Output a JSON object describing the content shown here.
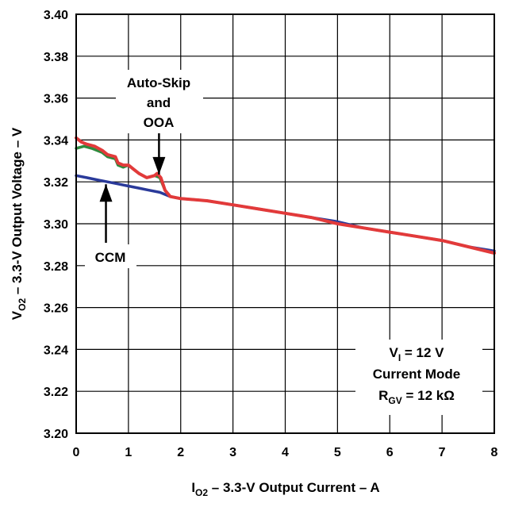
{
  "chart_data": {
    "type": "line",
    "title": "",
    "xlabel": {
      "main": "I",
      "sub": "O2",
      "rest": " – 3.3-V Output Current –  A"
    },
    "ylabel": {
      "main": "V",
      "sub": "O2",
      "rest": " – 3.3-V Output Voltage – V"
    },
    "xlim": [
      0,
      8
    ],
    "ylim": [
      3.2,
      3.4
    ],
    "x_ticks": [
      "0",
      "1",
      "2",
      "3",
      "4",
      "5",
      "6",
      "7",
      "8"
    ],
    "y_ticks": [
      "3.20",
      "3.22",
      "3.24",
      "3.26",
      "3.28",
      "3.30",
      "3.32",
      "3.34",
      "3.36",
      "3.38",
      "3.40"
    ],
    "grid": true,
    "series": [
      {
        "color": "#2a3a9a",
        "points": [
          [
            0,
            3.323
          ],
          [
            0.2,
            3.322
          ],
          [
            0.4,
            3.321
          ],
          [
            0.6,
            3.32
          ],
          [
            0.8,
            3.319
          ],
          [
            1.0,
            3.318
          ],
          [
            1.2,
            3.317
          ],
          [
            1.4,
            3.316
          ],
          [
            1.6,
            3.315
          ],
          [
            1.8,
            3.313
          ],
          [
            2.0,
            3.312
          ],
          [
            2.5,
            3.311
          ],
          [
            3,
            3.309
          ],
          [
            3.5,
            3.307
          ],
          [
            4,
            3.305
          ],
          [
            4.5,
            3.303
          ],
          [
            5,
            3.301
          ],
          [
            5.5,
            3.298
          ],
          [
            6,
            3.296
          ],
          [
            6.5,
            3.294
          ],
          [
            7,
            3.292
          ],
          [
            7.5,
            3.289
          ],
          [
            8,
            3.287
          ]
        ]
      },
      {
        "color": "#2e8b3e",
        "points": [
          [
            0,
            3.336
          ],
          [
            0.15,
            3.337
          ],
          [
            0.3,
            3.336
          ],
          [
            0.5,
            3.334
          ],
          [
            0.6,
            3.332
          ],
          [
            0.75,
            3.331
          ],
          [
            0.8,
            3.328
          ],
          [
            0.9,
            3.327
          ],
          [
            1.0,
            3.328
          ],
          [
            1.1,
            3.326
          ],
          [
            1.2,
            3.324
          ],
          [
            1.35,
            3.322
          ],
          [
            1.5,
            3.323
          ],
          [
            1.6,
            3.322
          ],
          [
            1.7,
            3.316
          ],
          [
            1.8,
            3.313
          ],
          [
            2.0,
            3.312
          ]
        ]
      },
      {
        "color": "#e23a3a",
        "points": [
          [
            0,
            3.341
          ],
          [
            0.1,
            3.339
          ],
          [
            0.2,
            3.338
          ],
          [
            0.35,
            3.337
          ],
          [
            0.5,
            3.335
          ],
          [
            0.6,
            3.333
          ],
          [
            0.75,
            3.332
          ],
          [
            0.8,
            3.329
          ],
          [
            0.9,
            3.328
          ],
          [
            1.0,
            3.328
          ],
          [
            1.1,
            3.326
          ],
          [
            1.2,
            3.324
          ],
          [
            1.35,
            3.322
          ],
          [
            1.5,
            3.323
          ],
          [
            1.55,
            3.324
          ],
          [
            1.62,
            3.322
          ],
          [
            1.7,
            3.316
          ],
          [
            1.8,
            3.313
          ],
          [
            2.0,
            3.312
          ],
          [
            2.5,
            3.311
          ],
          [
            3,
            3.309
          ],
          [
            3.5,
            3.307
          ],
          [
            4,
            3.305
          ],
          [
            4.5,
            3.303
          ],
          [
            5,
            3.3
          ],
          [
            5.5,
            3.298
          ],
          [
            6,
            3.296
          ],
          [
            6.5,
            3.294
          ],
          [
            7,
            3.292
          ],
          [
            7.5,
            3.289
          ],
          [
            8,
            3.286
          ]
        ]
      }
    ],
    "annotations": [
      {
        "id": "auto-skip",
        "lines": [
          "Auto-Skip",
          "and",
          "OOA"
        ],
        "points_to": [
          1.6,
          3.322
        ]
      },
      {
        "id": "ccm",
        "lines": [
          "CCM"
        ],
        "points_to": [
          0.6,
          3.32
        ]
      }
    ],
    "condition_box": [
      {
        "main": "V",
        "sub": "I",
        "rest": " = 12 V"
      },
      {
        "main": "Current Mode",
        "sub": "",
        "rest": ""
      },
      {
        "main": "R",
        "sub": "GV",
        "rest": " = 12 kΩ"
      }
    ]
  }
}
